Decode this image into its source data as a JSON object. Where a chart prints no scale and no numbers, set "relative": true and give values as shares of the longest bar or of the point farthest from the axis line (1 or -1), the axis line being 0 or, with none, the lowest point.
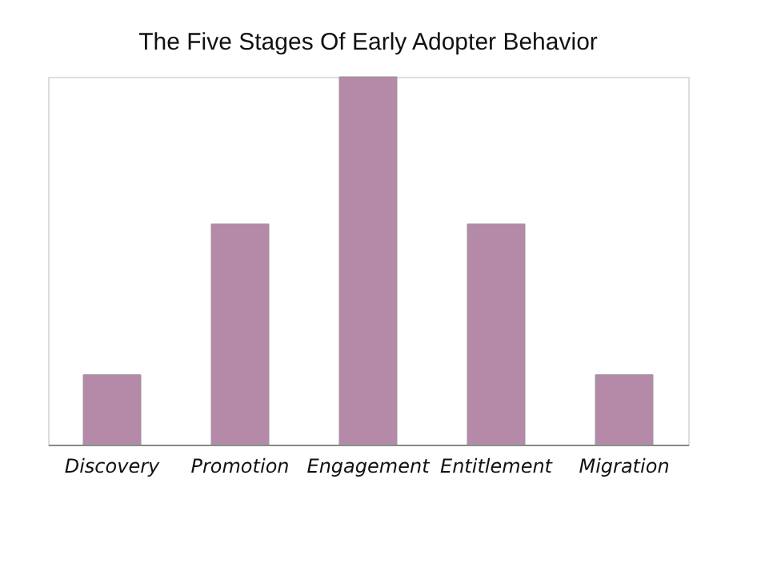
{
  "chart_data": {
    "type": "bar",
    "title": "The Five Stages Of Early Adopter Behavior",
    "categories": [
      "Discovery",
      "Promotion",
      "Engagement",
      "Entitlement",
      "Migration"
    ],
    "values": [
      0.19,
      0.6,
      1,
      0.6,
      0.19
    ],
    "color": "#b48aa8",
    "relative": true,
    "grid": false
  }
}
